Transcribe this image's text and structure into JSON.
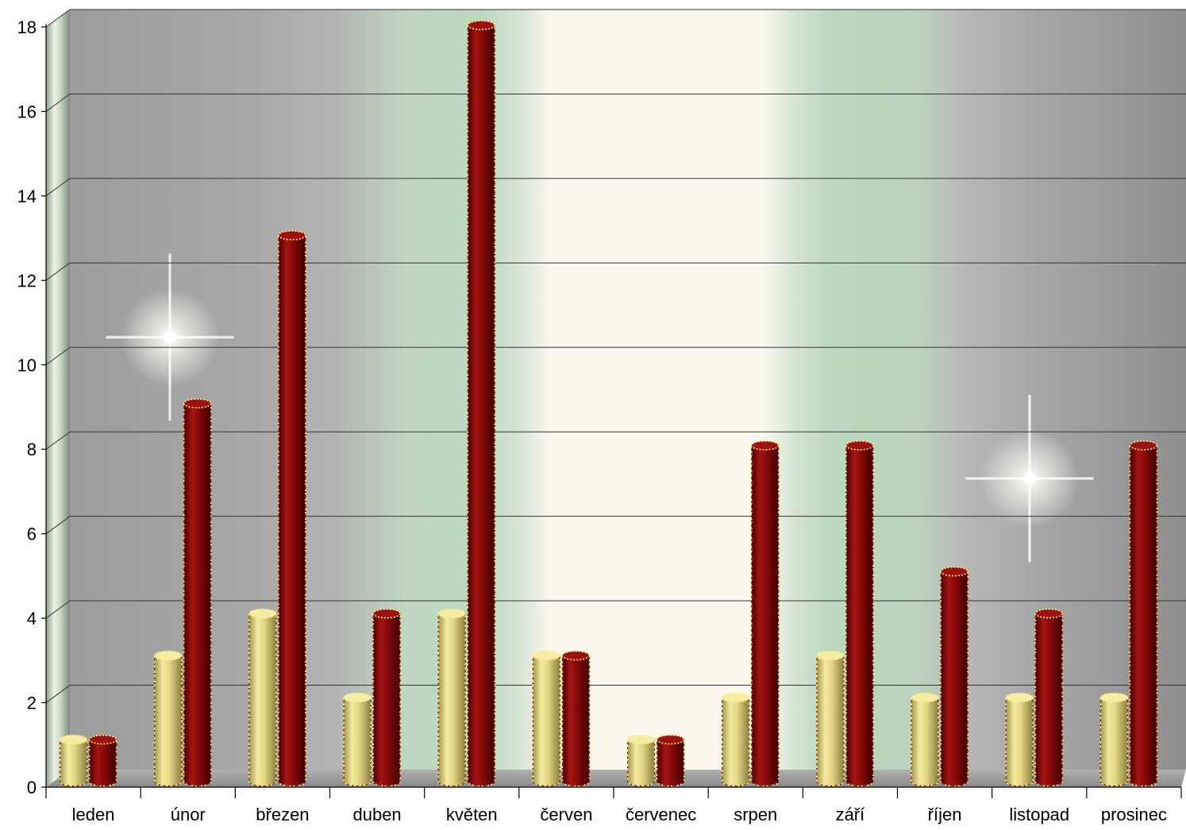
{
  "chart_data": {
    "type": "bar",
    "style": "3d-cylinder",
    "categories": [
      "leden",
      "únor",
      "březen",
      "duben",
      "květen",
      "červen",
      "červenec",
      "srpen",
      "září",
      "říjen",
      "listopad",
      "prosinec"
    ],
    "series": [
      {
        "values": [
          1,
          3,
          4,
          2,
          4,
          3,
          1,
          2,
          3,
          2,
          2,
          2
        ],
        "color": "#e8dc8a"
      },
      {
        "values": [
          1,
          9,
          13,
          4,
          18,
          3,
          1,
          8,
          8,
          5,
          4,
          8
        ],
        "color": "#8b0a0a"
      }
    ],
    "yticks": [
      "0",
      "2",
      "4",
      "6",
      "8",
      "10",
      "12",
      "14",
      "16",
      "18"
    ],
    "ylim": [
      0,
      18
    ],
    "grid": true,
    "legend": "none",
    "colors": {
      "wall_gray": "#a8a8a8",
      "wall_green": "#bcd8bf",
      "wall_cream": "#fcf8ee",
      "gridline": "#333333",
      "bar_outline": "#fff176"
    }
  }
}
